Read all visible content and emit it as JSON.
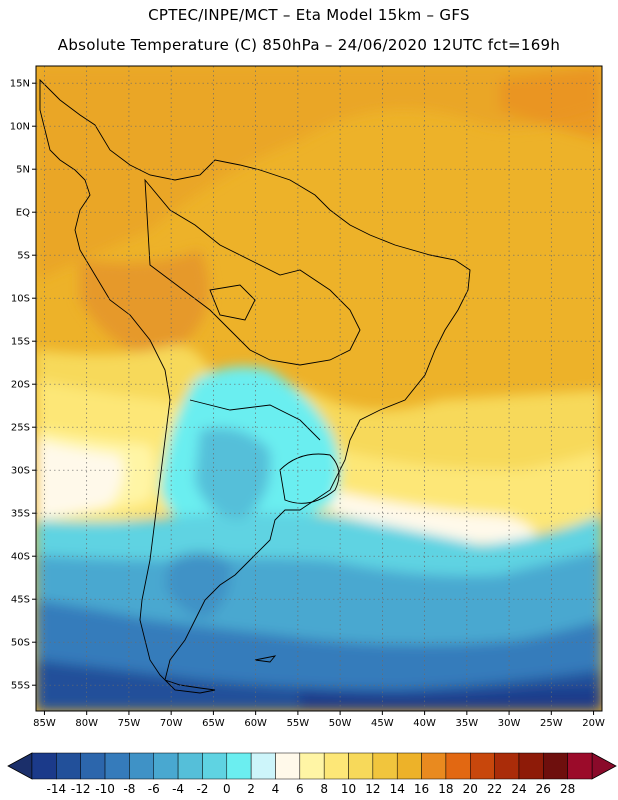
{
  "header": {
    "line1": "CPTEC/INPE/MCT –  Eta Model 15km – GFS",
    "line2": "Absolute Temperature (C) 850hPa – 24/06/2020 12UTC fct=169h"
  },
  "map": {
    "lat_labels": [
      "15N",
      "10N",
      "5N",
      "EQ",
      "5S",
      "10S",
      "15S",
      "20S",
      "25S",
      "30S",
      "35S",
      "40S",
      "45S",
      "50S",
      "55S"
    ],
    "lon_labels": [
      "85W",
      "80W",
      "75W",
      "70W",
      "65W",
      "60W",
      "55W",
      "50W",
      "45W",
      "40W",
      "35W",
      "30W",
      "25W",
      "20W"
    ],
    "lon_range": [
      -86,
      -19
    ],
    "lat_range": [
      -58,
      17
    ],
    "field": "Absolute Temperature (C)",
    "level": "850hPa",
    "grid": "dotted"
  },
  "colorbar": {
    "ticks": [
      "-14",
      "-12",
      "-10",
      "-8",
      "-6",
      "-4",
      "-2",
      "0",
      "2",
      "4",
      "6",
      "8",
      "10",
      "12",
      "14",
      "16",
      "18",
      "20",
      "22",
      "24",
      "26",
      "28"
    ],
    "colors": [
      "#1b3a8a",
      "#22509a",
      "#2c66ac",
      "#357bbb",
      "#3f92c6",
      "#49a8d0",
      "#55bfd9",
      "#5fd3e2",
      "#6beef0",
      "#cdf5fa",
      "#fff9ea",
      "#fff5a5",
      "#fde777",
      "#f7d95a",
      "#f1c53d",
      "#edb229",
      "#e98a1f",
      "#e26812",
      "#c8470c",
      "#aa2c09",
      "#8e1b08",
      "#6e0f0d",
      "#9b0b2a"
    ],
    "under_color": "#1b2f6a",
    "over_color": "#8a0a2a"
  }
}
